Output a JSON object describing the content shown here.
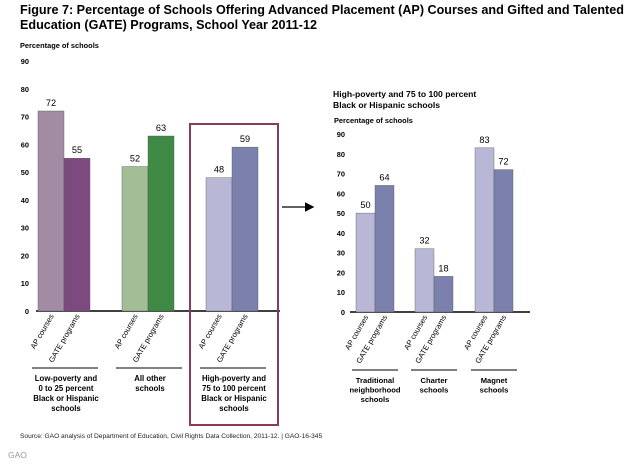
{
  "figure": {
    "title": "Figure 7: Percentage of Schools Offering Advanced Placement (AP) Courses and Gifted and Talented Education (GATE) Programs, School Year 2011-12",
    "source": "Source: GAO analysis of Department of Education, Civil Rights Data Collection, 2011-12.  |  GAO-16-345",
    "watermark": "GAO"
  },
  "chart_data": [
    {
      "type": "bar",
      "title": "",
      "ylabel": "Percentage of schools",
      "ylim": [
        0,
        90
      ],
      "yticks": [
        0,
        10,
        20,
        30,
        40,
        50,
        60,
        70,
        80,
        90
      ],
      "bar_labels": [
        "AP courses",
        "GATE programs"
      ],
      "groups": [
        {
          "label": [
            "Low-poverty and",
            "0 to 25 percent",
            "Black or Hispanic",
            "schools"
          ],
          "values": [
            72,
            55
          ],
          "colors": [
            "#a18ca3",
            "#7c4a7e"
          ]
        },
        {
          "label": [
            "All other",
            "schools"
          ],
          "values": [
            52,
            63
          ],
          "colors": [
            "#a3bd97",
            "#3f8a44"
          ]
        },
        {
          "label": [
            "High-poverty and",
            "75 to 100 percent",
            "Black or Hispanic",
            "schools"
          ],
          "values": [
            48,
            59
          ],
          "colors": [
            "#b9b7d6",
            "#7b80ac"
          ],
          "highlight": true
        }
      ],
      "highlight_color": "#8a3a5c"
    },
    {
      "type": "bar",
      "title": "High-poverty and 75 to 100 percent Black or Hispanic schools",
      "ylabel": "Percentage of schools",
      "ylim": [
        0,
        90
      ],
      "yticks": [
        0,
        10,
        20,
        30,
        40,
        50,
        60,
        70,
        80,
        90
      ],
      "bar_labels": [
        "AP courses",
        "GATE programs"
      ],
      "groups": [
        {
          "label": [
            "Traditional",
            "neighborhood",
            "schools"
          ],
          "values": [
            50,
            64
          ],
          "colors": [
            "#b9b7d6",
            "#7b80ac"
          ]
        },
        {
          "label": [
            "Charter",
            "schools"
          ],
          "values": [
            32,
            18
          ],
          "colors": [
            "#b9b7d6",
            "#7b80ac"
          ]
        },
        {
          "label": [
            "Magnet",
            "schools"
          ],
          "values": [
            83,
            72
          ],
          "colors": [
            "#b9b7d6",
            "#7b80ac"
          ]
        }
      ]
    }
  ]
}
